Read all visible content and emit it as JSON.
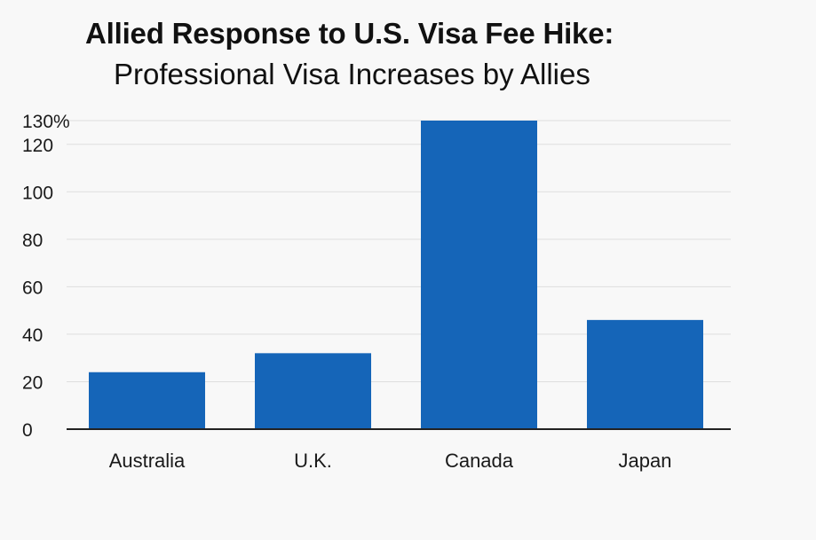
{
  "chart_data": {
    "type": "bar",
    "title": "Allied Response to U.S. Visa Fee Hike:",
    "subtitle": "Professional Visa Increases by Allies",
    "categories": [
      "Australia",
      "U.K.",
      "Canada",
      "Japan"
    ],
    "values": [
      24,
      32,
      130,
      46
    ],
    "ylim": [
      0,
      130
    ],
    "y_ticks": [
      0,
      20,
      40,
      60,
      80,
      100,
      120,
      130
    ],
    "y_tick_labels": [
      "0",
      "20",
      "40",
      "60",
      "80",
      "100",
      "120",
      "130%"
    ],
    "xlabel": "",
    "ylabel": "",
    "grid": true,
    "colors": {
      "bar": "#1565b8",
      "grid": "#dedede",
      "axis": "#222222",
      "background": "#f8f8f8"
    }
  }
}
